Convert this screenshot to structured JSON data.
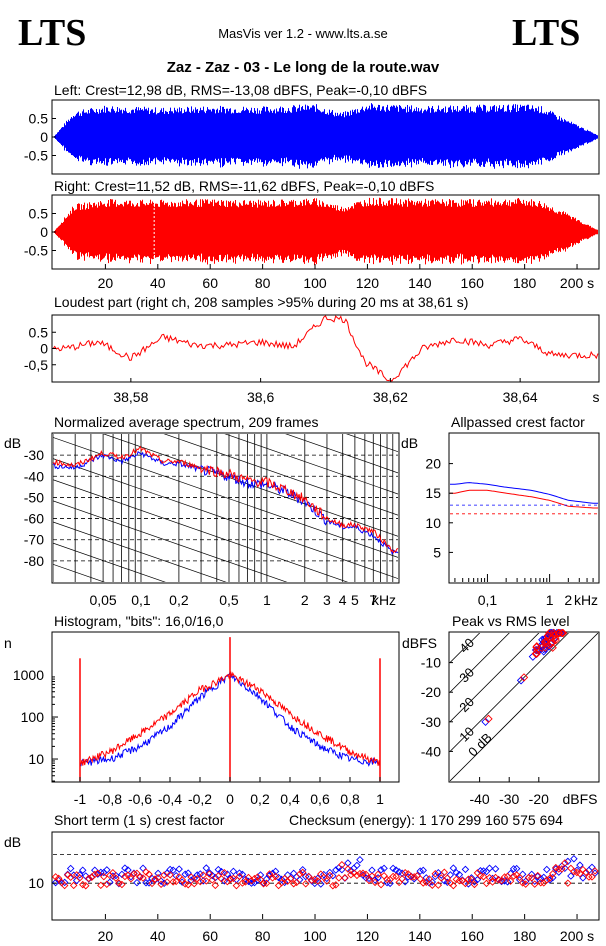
{
  "header": {
    "logo_left": "LTS",
    "logo_right": "LTS",
    "app": "MasVis ver 1.2 - www.lts.a.se",
    "file_title": "Zaz - Zaz - 03 - Le long de la route.wav"
  },
  "colors": {
    "left": "#0000ff",
    "right": "#ff0000"
  },
  "waveform": {
    "left_label": "Left: Crest=12,98 dB, RMS=-13,08 dBFS, Peak=-0,10 dBFS",
    "right_label": "Right: Crest=11,52 dB, RMS=-11,62 dBFS, Peak=-0,10 dBFS",
    "y_ticks": [
      "0.5",
      "0",
      "-0.5"
    ],
    "x_ticks": [
      "20",
      "40",
      "60",
      "80",
      "100",
      "120",
      "140",
      "160",
      "180",
      "200 s"
    ],
    "duration_s": 208,
    "loudest_marker_s": 38.61
  },
  "loudest": {
    "label": "Loudest part (right ch, 208 samples >95% during 20 ms at 38,61 s)",
    "y_ticks": [
      "0.5",
      "0",
      "-0,5"
    ],
    "x_ticks": [
      "38,58",
      "38,6",
      "38,62",
      "38,64",
      "s"
    ]
  },
  "spectrum": {
    "label": "Normalized average spectrum, 209 frames",
    "y_unit": "dB",
    "y_ticks": [
      "-30",
      "-40",
      "-50",
      "-60",
      "-70",
      "-80"
    ],
    "x_ticks": [
      "0,05",
      "0,1",
      "0,2",
      "0,5",
      "1",
      "2",
      "3",
      "4",
      "5",
      "7",
      "kHz"
    ]
  },
  "crest": {
    "label": "Allpassed crest factor",
    "y_unit": "dB",
    "y_ticks": [
      "20",
      "15",
      "10",
      "5"
    ],
    "x_ticks": [
      "0,1",
      "1",
      "2",
      "kHz"
    ]
  },
  "histogram": {
    "label": "Histogram, \"bits\": 16,0/16,0",
    "y_unit": "n",
    "y_ticks": [
      "1000",
      "100",
      "10"
    ],
    "x_ticks": [
      "-1",
      "-0,8",
      "-0,6",
      "-0,4",
      "-0,2",
      "0",
      "0,2",
      "0,4",
      "0,6",
      "0,8",
      "1"
    ]
  },
  "peakrms": {
    "label": "Peak vs RMS level",
    "y_unit": "dBFS",
    "y_ticks": [
      "-10",
      "-20",
      "-30",
      "-40"
    ],
    "x_ticks": [
      "-40",
      "-30",
      "-20",
      "dBFS"
    ],
    "diag_labels": [
      "40",
      "30",
      "20",
      "10",
      "0 dB"
    ]
  },
  "shortterm": {
    "label": "Short term (1 s) crest factor",
    "checksum": "Checksum (energy):  1 170 299 160 575 694",
    "y_unit": "dB",
    "y_ticks": [
      "10"
    ],
    "x_ticks": [
      "20",
      "40",
      "60",
      "80",
      "100",
      "120",
      "140",
      "160",
      "180",
      "200 s"
    ]
  },
  "chart_data": [
    {
      "type": "area",
      "name": "left-waveform",
      "x": [
        0,
        8,
        20,
        40,
        60,
        80,
        100,
        110,
        120,
        140,
        160,
        180,
        186,
        196,
        208
      ],
      "values": [
        0.0,
        0.75,
        0.92,
        0.85,
        0.9,
        0.88,
        0.95,
        0.7,
        0.98,
        0.9,
        0.92,
        0.95,
        0.9,
        0.5,
        0.05
      ],
      "ylim": [
        -1,
        1
      ]
    },
    {
      "type": "area",
      "name": "right-waveform",
      "x": [
        0,
        8,
        20,
        40,
        60,
        80,
        100,
        110,
        120,
        140,
        160,
        180,
        186,
        196,
        208
      ],
      "values": [
        0.0,
        0.8,
        0.95,
        0.92,
        0.95,
        0.92,
        0.98,
        0.75,
        0.99,
        0.95,
        0.95,
        0.98,
        0.9,
        0.55,
        0.05
      ],
      "ylim": [
        -1,
        1
      ]
    },
    {
      "type": "line",
      "name": "loudest-part",
      "x": [
        38.57,
        38.575,
        38.58,
        38.585,
        38.59,
        38.595,
        38.6,
        38.605,
        38.61,
        38.613,
        38.616,
        38.62,
        38.625,
        38.63,
        38.635,
        38.64,
        38.645,
        38.65
      ],
      "values": [
        0.0,
        0.2,
        -0.3,
        0.35,
        0.1,
        0.1,
        0.2,
        0.05,
        0.95,
        0.9,
        -0.4,
        -1.0,
        0.0,
        0.3,
        0.1,
        0.3,
        -0.2,
        -0.2
      ],
      "ylim": [
        -1,
        1
      ]
    },
    {
      "type": "line",
      "name": "spectrum",
      "x": [
        0.02,
        0.03,
        0.05,
        0.07,
        0.1,
        0.15,
        0.2,
        0.3,
        0.5,
        0.7,
        1,
        1.5,
        2,
        3,
        4,
        5,
        7,
        10
      ],
      "series": [
        {
          "values": [
            -35,
            -36,
            -30,
            -33,
            -29,
            -34,
            -34,
            -37,
            -40,
            -43,
            -44,
            -48,
            -52,
            -61,
            -64,
            -64,
            -68,
            -76
          ]
        },
        {
          "values": [
            -33,
            -35,
            -29,
            -31,
            -27,
            -33,
            -33,
            -36,
            -39,
            -42,
            -43,
            -47,
            -51,
            -60,
            -63,
            -63,
            -66,
            -75
          ]
        }
      ],
      "ylim": [
        -90,
        -20
      ]
    },
    {
      "type": "line",
      "name": "crest-factor",
      "x": [
        0.03,
        0.05,
        0.1,
        0.2,
        0.5,
        1,
        2,
        5
      ],
      "series": [
        {
          "values": [
            16.5,
            16.8,
            16.5,
            16.0,
            15.5,
            14.8,
            13.8,
            13.3
          ]
        },
        {
          "values": [
            15.0,
            15.5,
            15.5,
            15.0,
            14.4,
            13.8,
            12.8,
            12.5
          ]
        }
      ],
      "ylim": [
        0,
        25
      ]
    },
    {
      "type": "line",
      "name": "histogram",
      "x": [
        -1,
        -0.8,
        -0.6,
        -0.4,
        -0.2,
        0,
        0.2,
        0.4,
        0.6,
        0.8,
        1
      ],
      "series": [
        {
          "values": [
            8,
            10,
            20,
            60,
            300,
            1000,
            300,
            60,
            20,
            10,
            8
          ]
        },
        {
          "values": [
            8,
            15,
            40,
            120,
            450,
            1000,
            450,
            120,
            40,
            15,
            8
          ]
        }
      ],
      "ylim": [
        3,
        10000
      ]
    },
    {
      "type": "scatter",
      "name": "peak-vs-rms",
      "series": [
        {
          "x": [
            -38,
            -26,
            -22,
            -20,
            -19,
            -18,
            -16
          ],
          "values": [
            -30,
            -16,
            -8,
            -6,
            -4,
            -2,
            0
          ]
        },
        {
          "x": [
            -37,
            -25,
            -21,
            -19,
            -18,
            -17,
            -15
          ],
          "values": [
            -29,
            -15,
            -7,
            -5,
            -3,
            -1,
            0
          ]
        }
      ],
      "xlim": [
        -50,
        -10
      ],
      "ylim": [
        -50,
        0
      ]
    },
    {
      "type": "scatter",
      "name": "short-term-crest",
      "x_range": [
        1,
        208
      ],
      "series": [
        {
          "mean": 11,
          "spread": 1.4
        },
        {
          "mean": 10.6,
          "spread": 1.2
        }
      ],
      "ylim": [
        5,
        17
      ]
    }
  ]
}
